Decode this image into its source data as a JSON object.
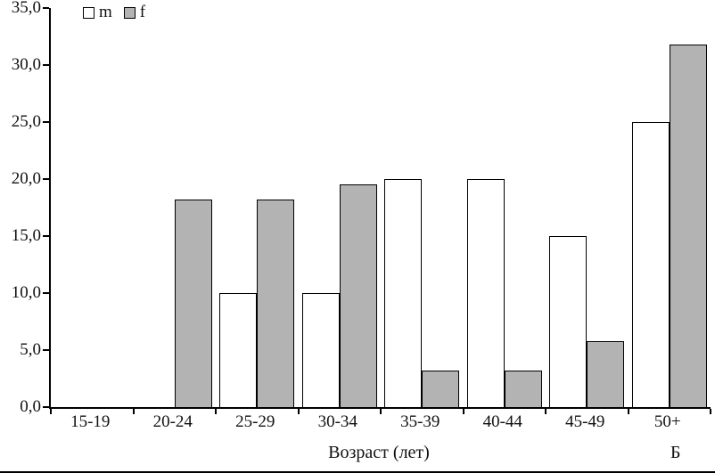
{
  "chart_data": {
    "type": "bar",
    "categories": [
      "15-19",
      "20-24",
      "25-29",
      "30-34",
      "35-39",
      "40-44",
      "45-49",
      "50+"
    ],
    "series": [
      {
        "name": "m",
        "color": "#ffffff",
        "values": [
          0,
          0,
          10.0,
          10.0,
          20.0,
          20.0,
          15.0,
          25.0
        ]
      },
      {
        "name": "f",
        "color": "#b3b3b3",
        "values": [
          0,
          18.2,
          18.2,
          19.5,
          3.2,
          3.2,
          5.8,
          31.8
        ]
      }
    ],
    "title": "",
    "xlabel": "Возраст (лет)",
    "ylabel": "",
    "ylim": [
      0,
      35
    ],
    "ytick_step": 5,
    "ytick_labels": [
      "0,0",
      "5,0",
      "10,0",
      "15,0",
      "20,0",
      "25,0",
      "30,0",
      "35,0"
    ],
    "legend": [
      "m",
      "f"
    ],
    "legend_position": "top-left",
    "grid": false,
    "panel_label": "Б"
  }
}
